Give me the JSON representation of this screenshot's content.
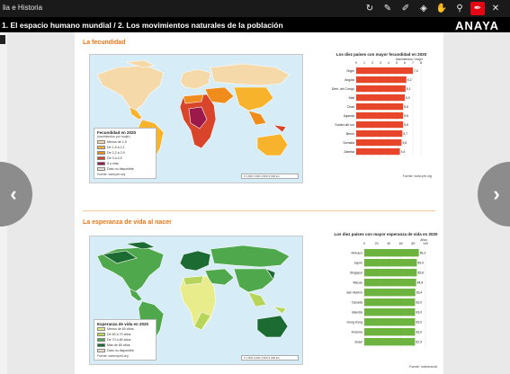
{
  "app": {
    "title": "lia e Historia",
    "section_title": "1. El espacio humano mundial / 2. Los movimientos naturales de la población",
    "logo": "ANAYA"
  },
  "toolbar": {
    "tools": [
      {
        "name": "refresh-icon",
        "glyph": "↻"
      },
      {
        "name": "pencil-icon",
        "glyph": "✎"
      },
      {
        "name": "marker-icon",
        "glyph": "✐"
      },
      {
        "name": "eraser-icon",
        "glyph": "◈"
      },
      {
        "name": "hand-icon",
        "glyph": "✋"
      },
      {
        "name": "search-icon",
        "glyph": "⚲"
      },
      {
        "name": "highlighter-icon",
        "glyph": "✒",
        "active": true
      },
      {
        "name": "close-icon",
        "glyph": "✕"
      }
    ],
    "accent": "#e30613"
  },
  "section1": {
    "heading": "La fecundidad",
    "legend": {
      "title": "Fecundidad en 2020",
      "subtitle": "(nacimientos por mujer)",
      "items": [
        {
          "label": "Menos de 1,5",
          "color": "#f5d9a8"
        },
        {
          "label": "De 1,5 a 2,1",
          "color": "#f7b32b"
        },
        {
          "label": "De 2,2 a 2,9",
          "color": "#f08c1b"
        },
        {
          "label": "De 3 a 4,9",
          "color": "#d8452a"
        },
        {
          "label": "5 o más",
          "color": "#9b1a4a"
        },
        {
          "label": "Dato no disponible",
          "color": "#e6ddd0"
        }
      ],
      "source": "Fuente: www.prb.org"
    },
    "scale": "0   1 500  3 000  4 500  6 000 km"
  },
  "section2": {
    "heading": "La esperanza de vida al nacer",
    "legend": {
      "title": "Esperanza de vida en 2020",
      "items": [
        {
          "label": "Menos de 60 años",
          "color": "#e9ec8a"
        },
        {
          "label": "De 60 a 70 años",
          "color": "#b7d55a"
        },
        {
          "label": "De 70 a 80 años",
          "color": "#4fa84b"
        },
        {
          "label": "Más de 80 años",
          "color": "#1b6b33"
        },
        {
          "label": "Dato no disponible",
          "color": "#e6ddd0"
        }
      ],
      "source": "Fuente: www.wpnd.org"
    },
    "scale": "0   1 500  3 000  4 500  6 000 km"
  },
  "chart_data": [
    {
      "type": "bar",
      "title": "Los diez países con mayor fecundidad en 2020",
      "xlabel": "Nacimientos / mujer",
      "ylabel": "",
      "categories": [
        "Níger",
        "Angola",
        "República Dem. del Congo",
        "Mali",
        "Chad",
        "Uganda",
        "Sudán del sur",
        "Benín",
        "Somalia",
        "Zambia"
      ],
      "values": [
        7.0,
        6.2,
        6.1,
        6.0,
        5.8,
        5.8,
        5.8,
        5.7,
        5.6,
        5.4
      ],
      "value_labels": [
        "7,0",
        "6,2",
        "6,1",
        "6,0",
        "5,8",
        "5,8",
        "5,8",
        "5,7",
        "5,6",
        "5,4"
      ],
      "ticks": [
        0,
        1,
        2,
        3,
        4,
        5,
        6,
        7,
        8
      ],
      "xlim": [
        0,
        8
      ],
      "color": "#e8462a",
      "source": "Fuente: www.prb.org"
    },
    {
      "type": "bar",
      "title": "Los diez países con mayor esperanza de vida en 2020",
      "xlabel": "Años",
      "ylabel": "",
      "categories": [
        "Mónaco",
        "Japón",
        "Singapur",
        "Macao",
        "San Marino",
        "Canadá",
        "Islandia",
        "Hong Kong",
        "Andorra",
        "Israel"
      ],
      "values": [
        89.2,
        85.9,
        85.8,
        84.8,
        83.4,
        83.0,
        83.0,
        83.0,
        83.0,
        82.9
      ],
      "value_labels": [
        "89,2",
        "85,9",
        "85,8",
        "84,8",
        "83,4",
        "83,0",
        "83,0",
        "83,0",
        "83,0",
        "82,9"
      ],
      "ticks": [
        0,
        20,
        40,
        60,
        80,
        100
      ],
      "xlim": [
        0,
        100
      ],
      "color": "#6cb33f",
      "source": "Fuente: Indexmundi."
    }
  ]
}
